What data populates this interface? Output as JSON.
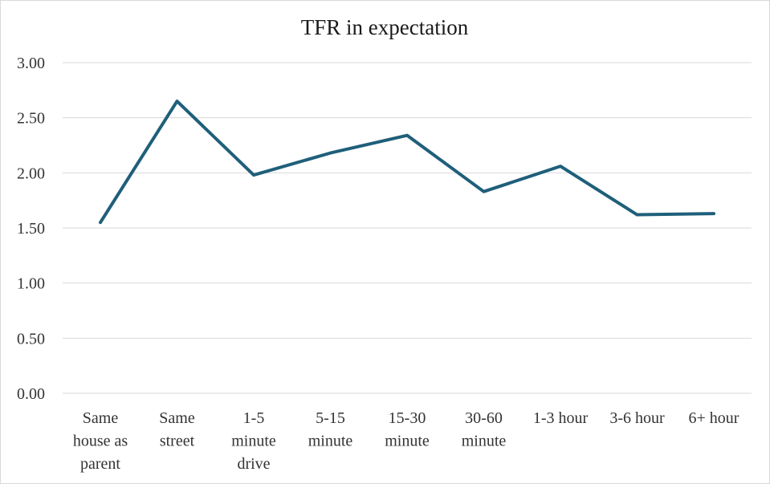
{
  "chart_data": {
    "type": "line",
    "title": "TFR in expectation",
    "xlabel": "",
    "ylabel": "",
    "categories": [
      [
        "Same",
        "house as",
        "parent"
      ],
      [
        "Same",
        "street"
      ],
      [
        "1-5",
        "minute",
        "drive"
      ],
      [
        "5-15",
        "minute"
      ],
      [
        "15-30",
        "minute"
      ],
      [
        "30-60",
        "minute"
      ],
      [
        "1-3 hour"
      ],
      [
        "3-6 hour"
      ],
      [
        "6+ hour"
      ]
    ],
    "series": [
      {
        "values": [
          1.55,
          2.65,
          1.98,
          2.18,
          2.34,
          1.83,
          2.06,
          1.62,
          1.63
        ]
      }
    ],
    "yticks": [
      "0.00",
      "0.50",
      "1.00",
      "1.50",
      "2.00",
      "2.50",
      "3.00"
    ],
    "ylim": [
      0,
      3
    ],
    "grid": true,
    "line_color": "#1f5f7a"
  }
}
